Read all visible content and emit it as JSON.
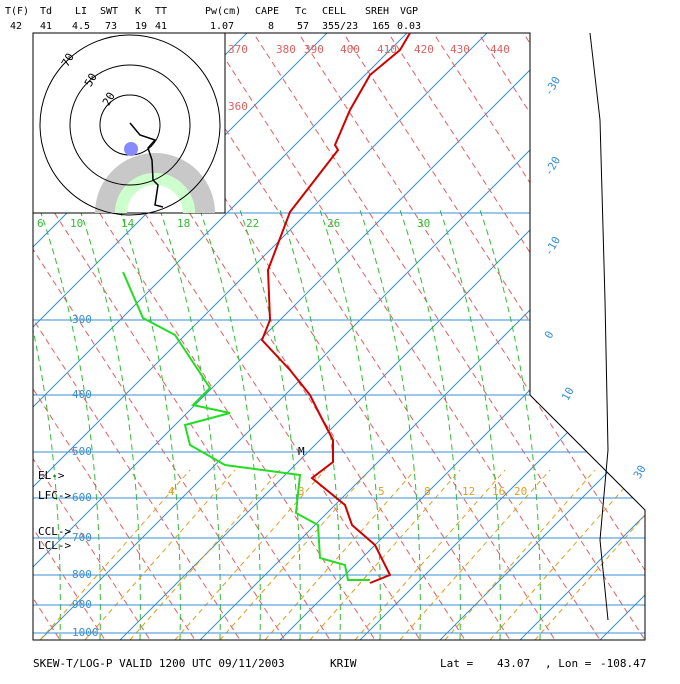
{
  "header": {
    "labels": [
      "T(F)",
      "Td",
      "LI",
      "SWT",
      "K",
      "TT",
      "Pw(cm)",
      "CAPE",
      "Tc",
      "CELL",
      "SREH",
      "VGP"
    ],
    "values": [
      "42",
      "41",
      "4.5",
      "73",
      "19",
      "41",
      "1.07",
      "8",
      "57",
      "355/23",
      "165",
      "0.03"
    ]
  },
  "pressure_labels": [
    "300",
    "400",
    "500",
    "600",
    "700",
    "800",
    "900",
    "1000"
  ],
  "isotherm_labels": [
    "-30",
    "-20",
    "-10",
    "0",
    "10",
    "30"
  ],
  "theta_labels": [
    "370",
    "380",
    "390",
    "400",
    "410",
    "420",
    "430",
    "440",
    "360"
  ],
  "mixing_labels_green": [
    "6",
    "10",
    "14",
    "18",
    "22",
    "26",
    "30"
  ],
  "mixing_labels_yellow": [
    "4",
    "3",
    "5",
    "8",
    "12",
    "16",
    "20"
  ],
  "level_labels": [
    "EL->",
    "LFC->",
    "CCL->",
    "LCL->"
  ],
  "hodograph_labels": [
    "70",
    "50",
    "20"
  ],
  "marker": "M",
  "footer": {
    "title": "SKEW-T/LOG-P VALID 1200 UTC 09/11/2003",
    "station": "KRIW",
    "lat_label": "Lat =",
    "lat": "43.07",
    "lon_label": ", Lon =",
    "lon": "-108.47"
  }
}
